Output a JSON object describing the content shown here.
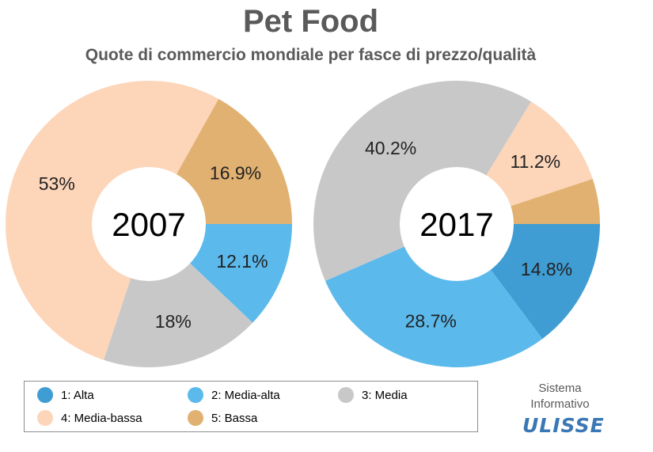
{
  "title": "Pet Food",
  "subtitle": "Quote di commercio mondiale per fasce di prezzo/qualità",
  "chart_data": [
    {
      "type": "pie",
      "center_label": "2007",
      "categories": [
        "1: Alta",
        "2: Media-alta",
        "3: Media",
        "4: Media-bassa",
        "5: Bassa"
      ],
      "values": [
        0,
        12.1,
        18,
        53,
        16.9
      ],
      "labels": [
        "",
        "12.1%",
        "18%",
        "53%",
        "16.9%"
      ],
      "colors": [
        "#3f9dd3",
        "#5bb9ec",
        "#c8c8c8",
        "#fdd5b9",
        "#e1b171"
      ]
    },
    {
      "type": "pie",
      "center_label": "2017",
      "categories": [
        "1: Alta",
        "2: Media-alta",
        "3: Media",
        "4: Media-bassa",
        "5: Bassa"
      ],
      "values": [
        14.8,
        28.7,
        40.2,
        11.2,
        5.1
      ],
      "labels": [
        "14.8%",
        "28.7%",
        "40.2%",
        "11.2%",
        ""
      ],
      "colors": [
        "#3f9dd3",
        "#5bb9ec",
        "#c8c8c8",
        "#fdd5b9",
        "#e1b171"
      ]
    }
  ],
  "legend": {
    "items": [
      {
        "label": "1: Alta",
        "color": "#3f9dd3"
      },
      {
        "label": "2: Media-alta",
        "color": "#5bb9ec"
      },
      {
        "label": "3: Media",
        "color": "#c8c8c8"
      },
      {
        "label": "4: Media-bassa",
        "color": "#fdd5b9"
      },
      {
        "label": "5: Bassa",
        "color": "#e1b171"
      }
    ]
  },
  "brand": {
    "line1": "Sistema",
    "line2": "Informativo",
    "logo": "ULISSE"
  }
}
